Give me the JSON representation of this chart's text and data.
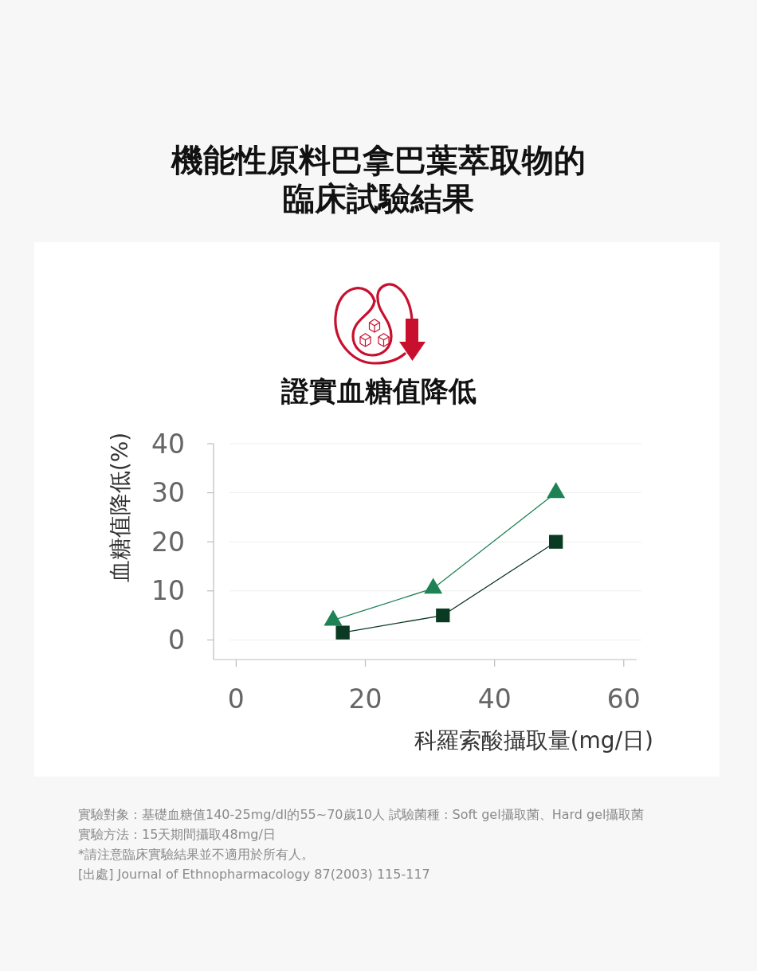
{
  "chart_data": {
    "type": "line",
    "title": "機能性原料巴拿巴葉萃取物的臨床試驗結果",
    "subtitle": "證實血糖值降低",
    "xlabel": "科羅索酸攝取量(mg/日)",
    "ylabel": "血糖值降低(%)",
    "annotations": [
      "實驗對象：基礎血糖值140-25mg/dl的55~70歲10人 試驗菌種 : Soft gel攝取菌、Hard gel攝取菌",
      "實驗方法：15天期間攝取48mg/日",
      "*請注意臨床實驗結果並不適用於所有人。",
      "[出處] Journal of Ethnopharmacology 87(2003) 115-117"
    ],
    "series": [
      {
        "color": "#1f8255",
        "marker": "triangle",
        "x": [
          15,
          30.5,
          49.5
        ],
        "values": [
          4,
          10.5,
          30
        ]
      },
      {
        "color": "#0a3a22",
        "marker": "square",
        "x": [
          16.5,
          32,
          49.5
        ],
        "values": [
          1.5,
          5,
          20
        ]
      }
    ],
    "xlim": [
      -3.5,
      62
    ],
    "xticks": [
      0,
      20,
      40,
      60
    ],
    "ylim": [
      -4,
      40
    ],
    "yticks": [
      0,
      10,
      20,
      30,
      40
    ],
    "grid": "y"
  }
}
